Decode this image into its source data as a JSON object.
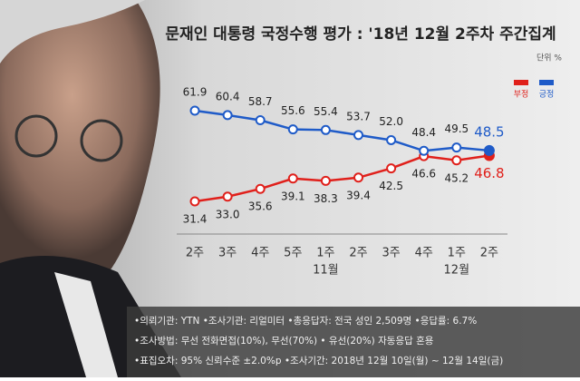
{
  "chart_data": {
    "type": "line",
    "title": "문재인 대통령 국정수행 평가 : '18년 12월 2주차 주간집계",
    "unit": "단위 %",
    "categories": [
      "2주",
      "3주",
      "4주",
      "5주",
      "1주",
      "2주",
      "3주",
      "4주",
      "1주",
      "2주"
    ],
    "x_groups": [
      {
        "label": "11월",
        "category": 4
      },
      {
        "label": "12월",
        "category": 8
      }
    ],
    "series": [
      {
        "name": "부정",
        "color": "#e0201b",
        "values": [
          31.4,
          33.0,
          35.6,
          39.1,
          38.3,
          39.4,
          42.5,
          46.6,
          45.2,
          46.8
        ],
        "value_labels": [
          "31.4",
          "33.0",
          "35.6",
          "39.1",
          "38.3",
          "39.4",
          "42.5",
          "46.6",
          "45.2",
          "46.8"
        ]
      },
      {
        "name": "긍정",
        "color": "#1f5bc8",
        "values": [
          61.9,
          60.4,
          58.7,
          55.6,
          55.4,
          53.7,
          52.0,
          48.4,
          49.5,
          48.5
        ],
        "value_labels": [
          "61.9",
          "60.4",
          "58.7",
          "55.6",
          "55.4",
          "53.7",
          "52.0",
          "48.4",
          "49.5",
          "48.5"
        ]
      }
    ],
    "notes": [
      "•의뢰기관: YTN  •조사기관: 리얼미터  •총응답자: 전국 성인 2,509명  •응답률: 6.7%",
      "•조사방법: 무선 전화면접(10%), 무선(70%) • 유선(20%) 자동응답 혼용",
      "•표집오차: 95% 신뢰수준 ±2.0%p  •조사기간: 2018년 12월 10일(월) ~ 12월 14일(금)"
    ]
  }
}
